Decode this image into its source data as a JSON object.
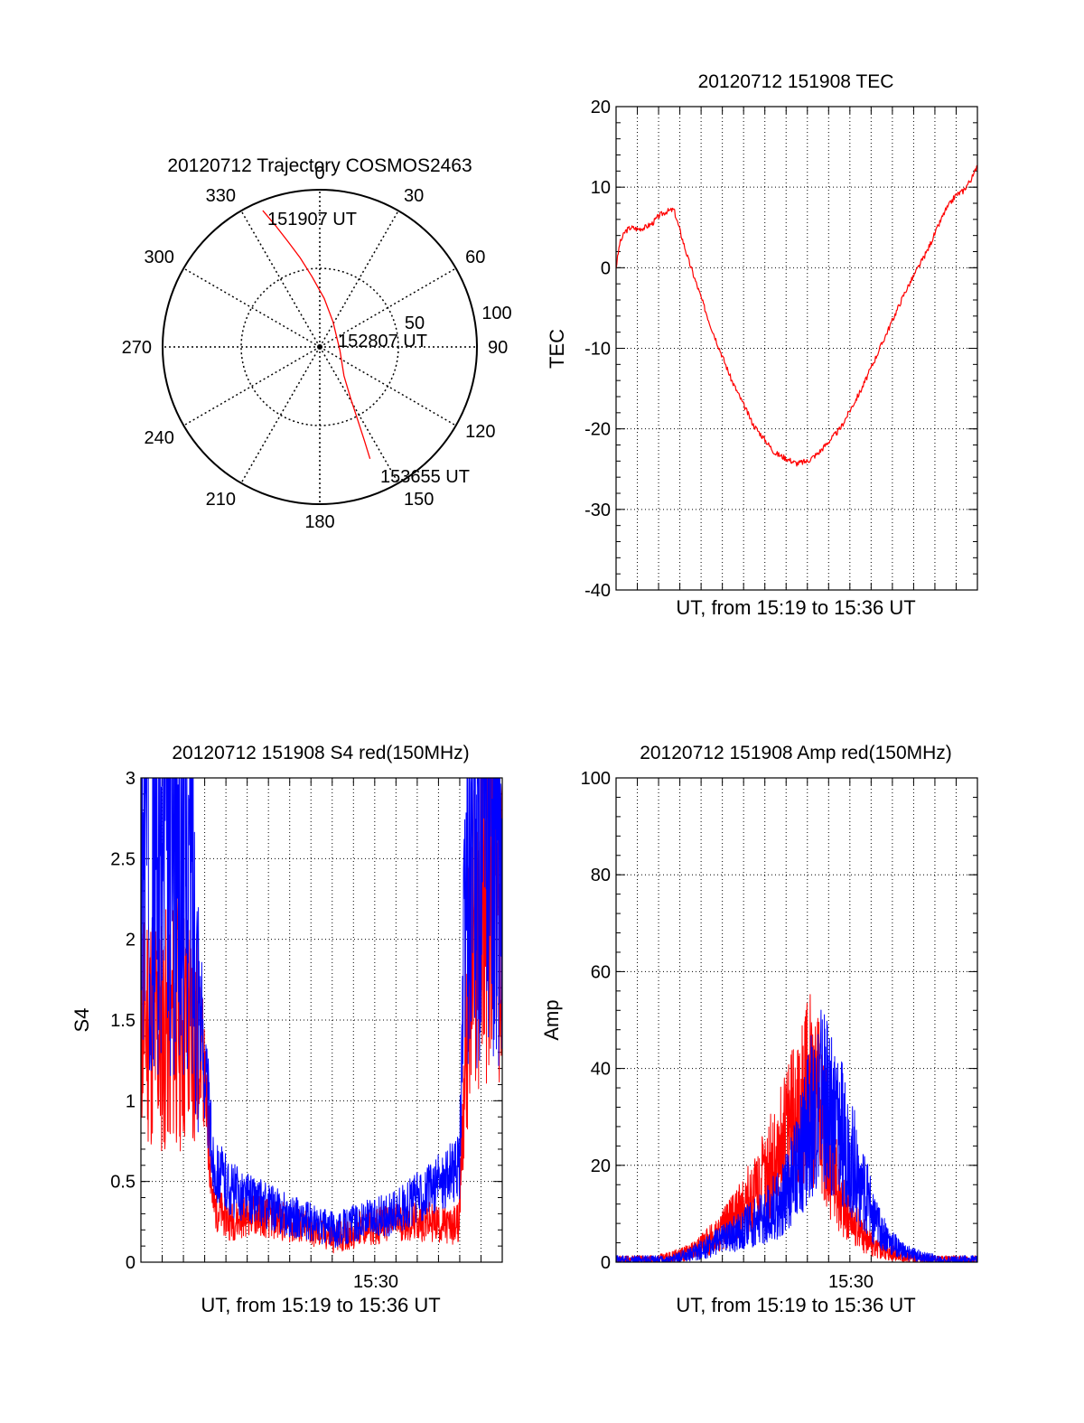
{
  "colors": {
    "red": "#ff0000",
    "blue": "#0000ff",
    "axis": "#000000"
  },
  "chart_data": [
    {
      "type": "polar",
      "title": "20120712 Trajectory COSMOS2463",
      "angle_labels": [
        "0",
        "30",
        "60",
        "90",
        "120",
        "150",
        "180",
        "210",
        "240",
        "270",
        "300",
        "330"
      ],
      "angle_values": [
        0,
        30,
        60,
        90,
        120,
        150,
        180,
        210,
        240,
        270,
        300,
        330
      ],
      "radial_ticks": [
        {
          "value": 50,
          "label": "50"
        },
        {
          "value": 100,
          "label": "100"
        }
      ],
      "rmax": 100,
      "series": [
        {
          "color": "#ff0000",
          "points": [
            {
              "az": 337.3,
              "r": 94
            },
            {
              "az": 340,
              "r": 82
            },
            {
              "az": 343.2,
              "r": 70
            },
            {
              "az": 347.6,
              "r": 58
            },
            {
              "az": 353.7,
              "r": 45
            },
            {
              "az": 5.2,
              "r": 31
            },
            {
              "az": 28,
              "r": 18
            },
            {
              "az": 100,
              "r": 13
            },
            {
              "az": 140,
              "r": 24
            },
            {
              "az": 149,
              "r": 38
            },
            {
              "az": 152.5,
              "r": 52
            },
            {
              "az": 154.5,
              "r": 66
            },
            {
              "az": 155.8,
              "r": 78
            }
          ]
        }
      ],
      "annotations": [
        "151907 UT",
        "152807 UT",
        "153655 UT"
      ]
    },
    {
      "type": "line",
      "title": "20120712 151908 TEC",
      "xlabel": "UT, from 15:19 to 15:36 UT",
      "ylabel": "TEC",
      "xlim": [
        0,
        1000
      ],
      "ylim": [
        -40,
        20
      ],
      "yticks": [
        20,
        10,
        0,
        -10,
        -20,
        -30,
        -40
      ],
      "grid": true,
      "series": [
        {
          "color": "#ff0000",
          "x": [
            0,
            10,
            25,
            40,
            60,
            80,
            100,
            120,
            140,
            160,
            200,
            260,
            320,
            380,
            440,
            500,
            530,
            560,
            620,
            680,
            740,
            800,
            860,
            910,
            940,
            960,
            975,
            990,
            1000
          ],
          "y": [
            0,
            3,
            4.5,
            5,
            4.8,
            5,
            5.5,
            6.5,
            7,
            7.2,
            1,
            -7,
            -14,
            -19.5,
            -23,
            -24.3,
            -24,
            -23,
            -20,
            -15,
            -9,
            -3,
            2,
            7,
            9,
            9.5,
            10.5,
            11.5,
            13
          ]
        }
      ]
    },
    {
      "type": "line",
      "title": "20120712 151908 S4 red(150MHz)",
      "xlabel": "UT, from 15:19 to 15:36 UT",
      "ylabel": "S4",
      "xlim": [
        0,
        1000
      ],
      "ylim": [
        0,
        3
      ],
      "yticks": [
        0,
        0.5,
        1,
        1.5,
        2,
        2.5,
        3
      ],
      "ytick_labels": [
        "0",
        "0.5",
        "1",
        "1.5",
        "2",
        "2.5",
        "3"
      ],
      "xtick_label": "15:30",
      "grid": true,
      "series": [
        {
          "color": "#ff0000",
          "x": [
            0,
            50,
            100,
            140,
            170,
            200,
            250,
            300,
            400,
            500,
            540,
            600,
            700,
            800,
            860,
            880,
            900,
            950,
            1000
          ],
          "y": [
            1.6,
            1.4,
            1.5,
            1.45,
            1.3,
            0.35,
            0.25,
            0.3,
            0.25,
            0.18,
            0.15,
            0.2,
            0.25,
            0.25,
            0.22,
            0.25,
            1.5,
            2.5,
            2.2
          ]
        },
        {
          "color": "#0000ff",
          "x": [
            0,
            50,
            100,
            140,
            170,
            200,
            250,
            300,
            400,
            500,
            540,
            600,
            700,
            800,
            860,
            880,
            900,
            950,
            1000
          ],
          "y": [
            2.6,
            2.5,
            2.6,
            2.4,
            1.4,
            0.6,
            0.45,
            0.4,
            0.3,
            0.22,
            0.2,
            0.25,
            0.3,
            0.45,
            0.55,
            0.6,
            2.2,
            2.7,
            2.6
          ]
        }
      ]
    },
    {
      "type": "line",
      "title": "20120712 151908 Amp red(150MHz)",
      "xlabel": "UT, from 15:19 to 15:36 UT",
      "ylabel": "Amp",
      "xlim": [
        0,
        1000
      ],
      "ylim": [
        0,
        100
      ],
      "yticks": [
        0,
        20,
        40,
        60,
        80,
        100
      ],
      "xtick_label": "15:30",
      "grid": true,
      "series": [
        {
          "color": "#ff0000",
          "x": [
            0,
            100,
            150,
            200,
            250,
            300,
            350,
            400,
            450,
            480,
            510,
            540,
            570,
            600,
            640,
            680,
            720,
            760,
            800,
            850,
            900,
            1000
          ],
          "y": [
            0.5,
            0.5,
            1,
            2,
            4,
            7,
            11,
            16,
            22,
            28,
            32,
            36,
            30,
            18,
            10,
            6,
            3,
            2,
            1,
            0.5,
            0.5,
            0.5
          ]
        },
        {
          "color": "#0000ff",
          "x": [
            0,
            100,
            150,
            200,
            250,
            300,
            350,
            400,
            450,
            480,
            510,
            540,
            570,
            600,
            640,
            680,
            720,
            760,
            800,
            850,
            900,
            1000
          ],
          "y": [
            0.5,
            0.5,
            0.5,
            1.5,
            3,
            5,
            7,
            9,
            12,
            16,
            22,
            30,
            34,
            30,
            24,
            16,
            8,
            4,
            2,
            1,
            0.5,
            0.5
          ]
        }
      ]
    }
  ]
}
